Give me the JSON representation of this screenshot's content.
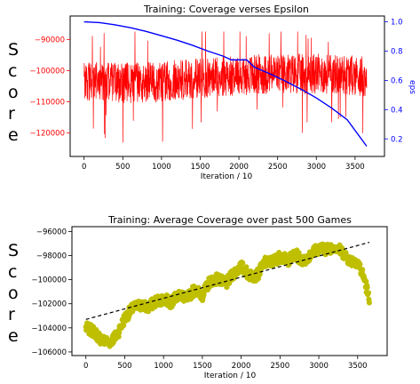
{
  "chart_data": [
    {
      "type": "line",
      "title": "Training: Coverage verses Epsilon",
      "xlabel": "Iteration / 10",
      "ylabel": "Score",
      "y2label": "eps",
      "xlim": [
        -180,
        3880
      ],
      "ylim": [
        -127500,
        -82500
      ],
      "y2lim": [
        0.08,
        1.04
      ],
      "x_ticks": [
        0,
        500,
        1000,
        1500,
        2000,
        2500,
        3000,
        3500
      ],
      "y_ticks": [
        -120000,
        -110000,
        -100000,
        -90000
      ],
      "y_tick_labels": [
        "−120000",
        "−110000",
        "−100000",
        "−90000"
      ],
      "y2_ticks": [
        0.2,
        0.4,
        0.6,
        0.8,
        1.0
      ],
      "grid": false,
      "colors": {
        "score": "#ff0000",
        "eps": "#0000ff",
        "y_axis": "#ff0000",
        "y2_axis": "#0000ff"
      },
      "series": [
        {
          "axis": "left",
          "style": "noisy-band",
          "x_range": [
            0,
            3650
          ],
          "center": [
            [
              0,
              -103000
            ],
            [
              500,
              -104000
            ],
            [
              1000,
              -103500
            ],
            [
              1500,
              -102500
            ],
            [
              2000,
              -101500
            ],
            [
              2500,
              -101000
            ],
            [
              3000,
              -101000
            ],
            [
              3500,
              -101500
            ],
            [
              3650,
              -102000
            ]
          ],
          "spread": 6500,
          "min": -124500,
          "max": -87500
        },
        {
          "axis": "right",
          "style": "line",
          "x": [
            0,
            200,
            400,
            600,
            800,
            1000,
            1200,
            1400,
            1600,
            1800,
            1900,
            2100,
            2200,
            2400,
            2600,
            2800,
            3000,
            3200,
            3400,
            3650
          ],
          "y": [
            1.0,
            0.995,
            0.98,
            0.96,
            0.935,
            0.905,
            0.875,
            0.84,
            0.8,
            0.765,
            0.74,
            0.74,
            0.69,
            0.645,
            0.595,
            0.54,
            0.48,
            0.41,
            0.33,
            0.15
          ]
        }
      ]
    },
    {
      "type": "scatter",
      "title": "Training: Average Coverage over past 500 Games",
      "xlabel": "Iteration / 10",
      "ylabel": "Score",
      "xlim": [
        -180,
        3880
      ],
      "ylim": [
        -106300,
        -95600
      ],
      "x_ticks": [
        0,
        500,
        1000,
        1500,
        2000,
        2500,
        3000,
        3500
      ],
      "y_ticks": [
        -106000,
        -104000,
        -102000,
        -100000,
        -98000,
        -96000
      ],
      "y_tick_labels": [
        "−106000",
        "−104000",
        "−102000",
        "−100000",
        "−98000",
        "−96000"
      ],
      "grid": false,
      "colors": {
        "points": "#bfbf00",
        "trend": "#000000"
      },
      "series": [
        {
          "style": "dense-markers",
          "x": [
            0,
            100,
            200,
            300,
            400,
            500,
            600,
            700,
            800,
            900,
            1000,
            1100,
            1200,
            1300,
            1400,
            1500,
            1600,
            1700,
            1800,
            1900,
            2000,
            2100,
            2200,
            2300,
            2400,
            2500,
            2600,
            2700,
            2800,
            2900,
            3000,
            3100,
            3200,
            3300,
            3400,
            3500,
            3600,
            3650
          ],
          "y": [
            -104000,
            -104300,
            -105000,
            -105200,
            -104600,
            -103200,
            -102400,
            -102100,
            -102300,
            -101800,
            -101600,
            -101900,
            -101200,
            -101600,
            -100800,
            -101300,
            -100100,
            -99900,
            -100400,
            -99500,
            -98900,
            -99600,
            -99700,
            -98600,
            -98500,
            -98100,
            -98400,
            -97900,
            -98500,
            -97800,
            -97400,
            -97500,
            -97200,
            -97700,
            -98400,
            -98500,
            -100200,
            -101800
          ]
        },
        {
          "style": "dashed-trend",
          "x": [
            0,
            3650
          ],
          "y": [
            -103300,
            -96900
          ]
        }
      ]
    }
  ],
  "side_labels": {
    "top": "S\nc\no\nr\ne",
    "bottom": "S\nc\no\nr\ne"
  }
}
